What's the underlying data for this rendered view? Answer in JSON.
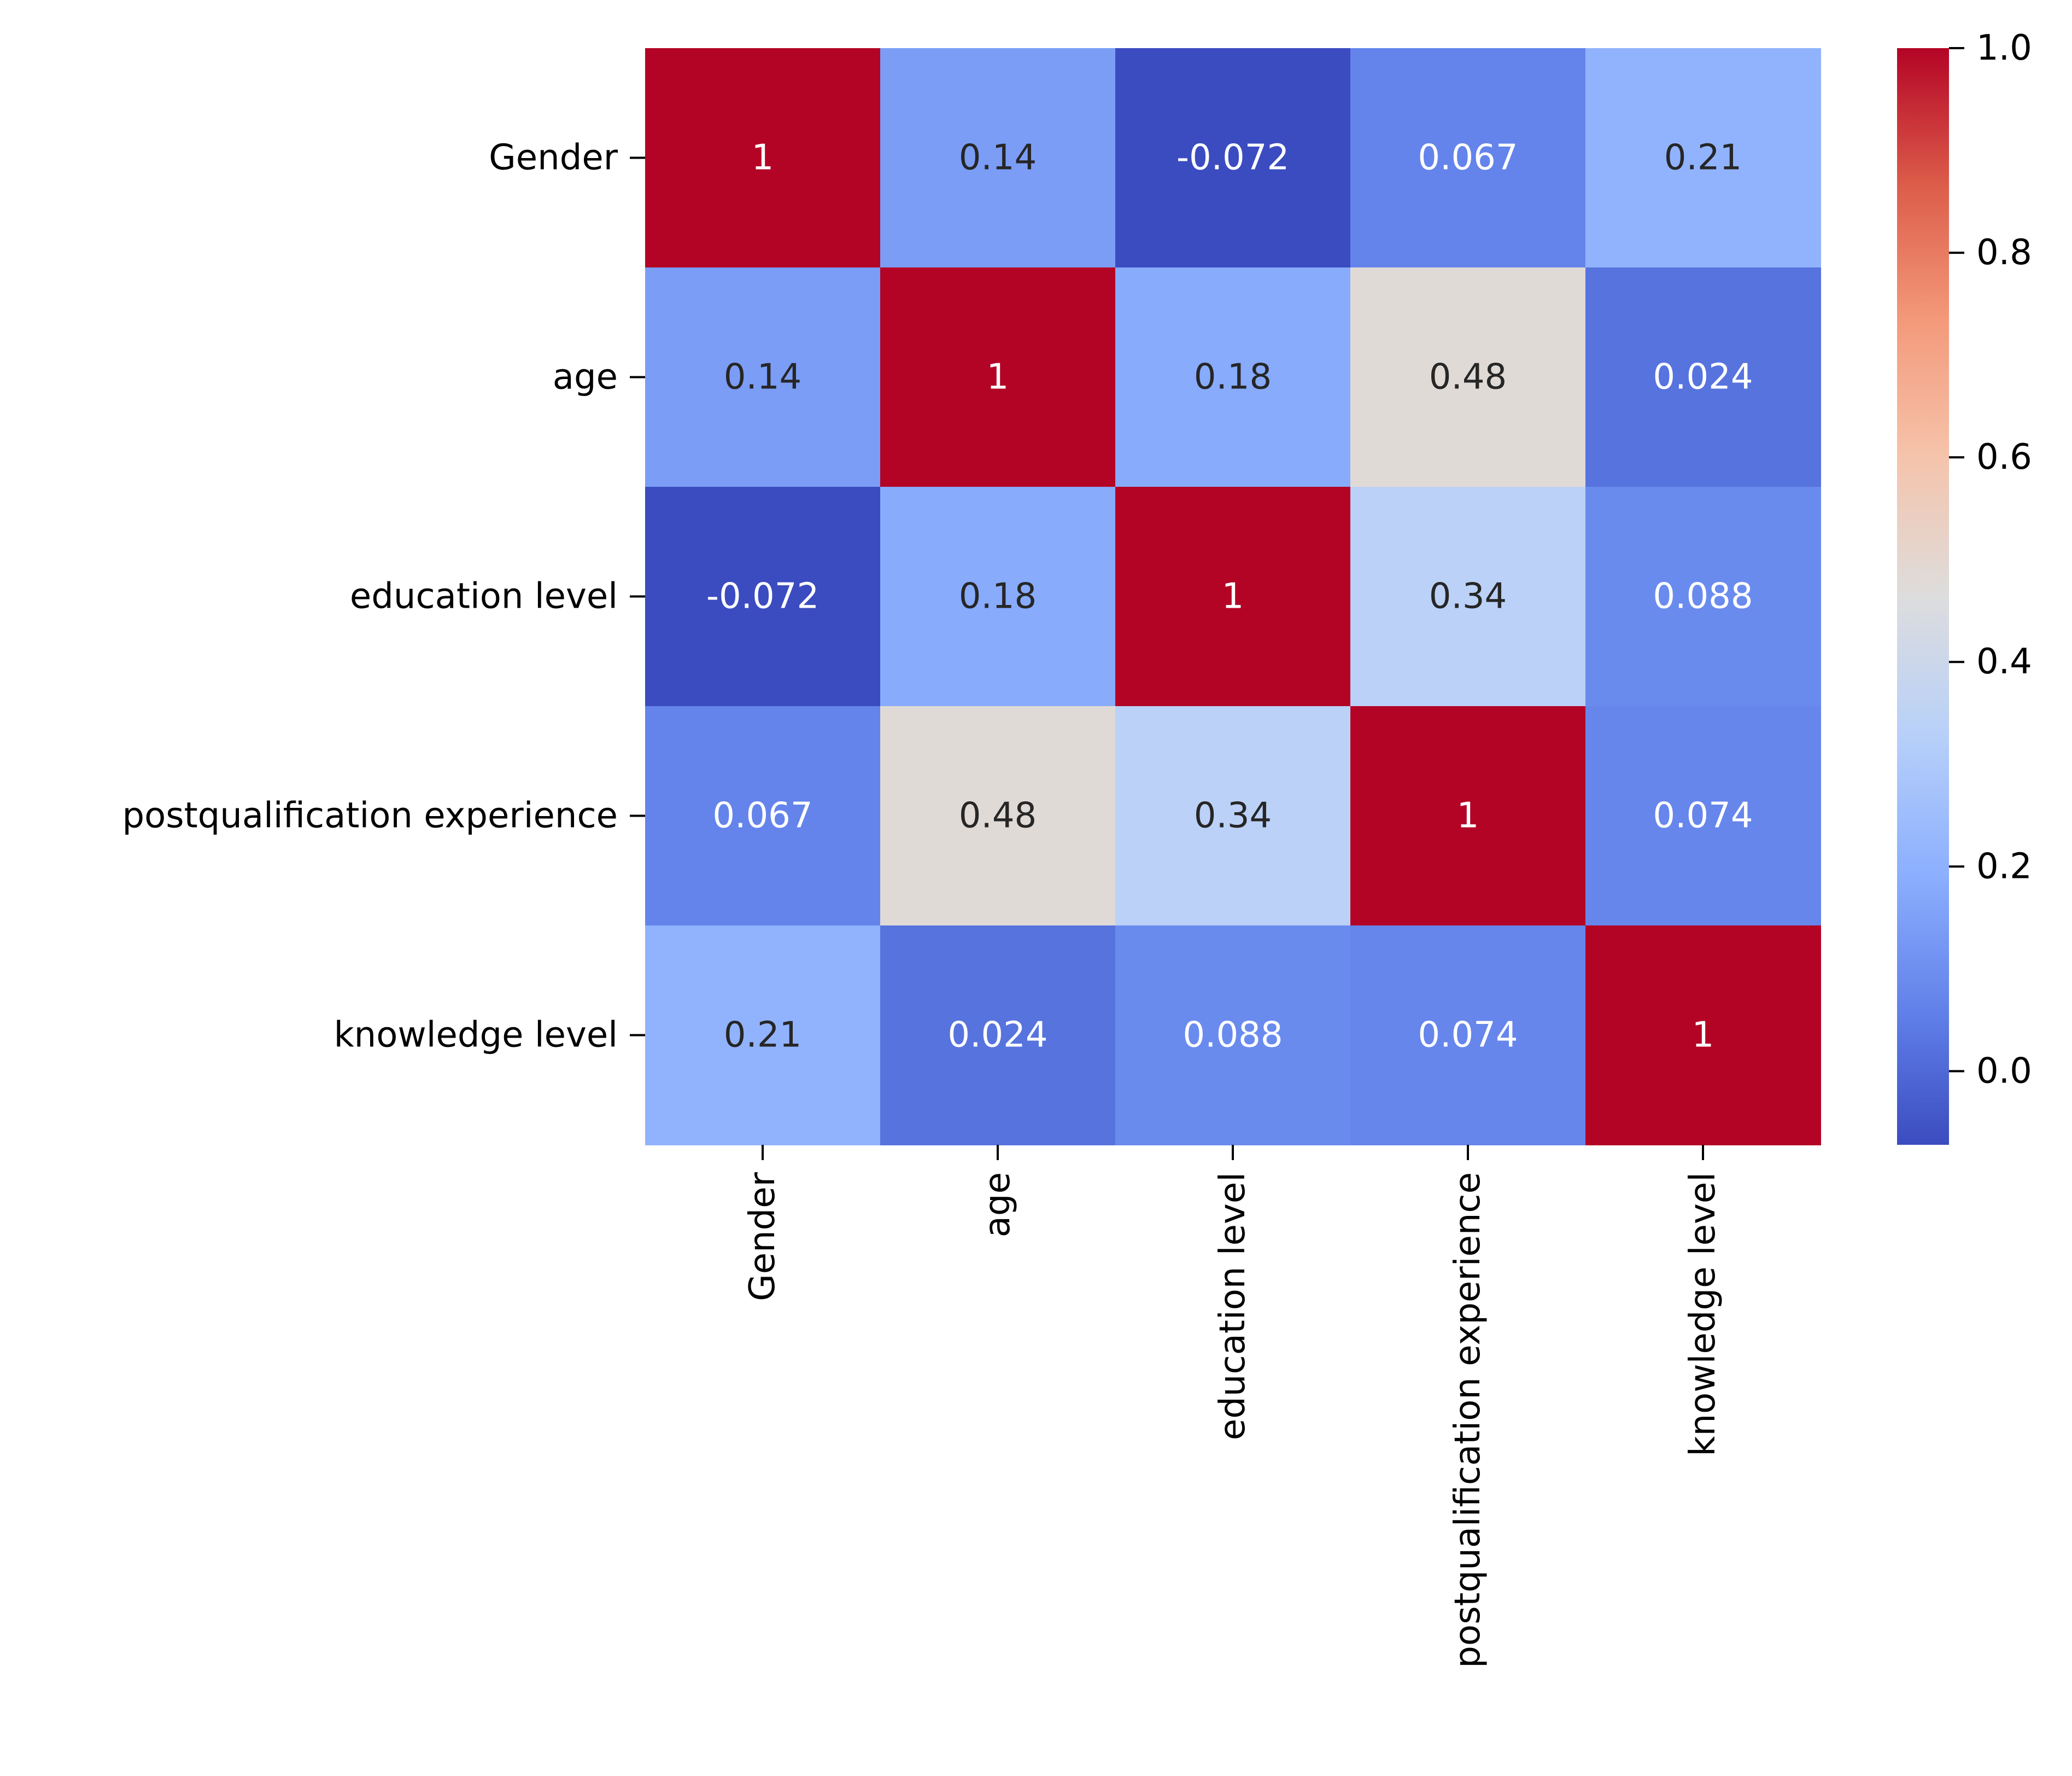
{
  "chart_data": {
    "type": "heatmap",
    "title": "",
    "xlabel": "",
    "ylabel": "",
    "row_labels": [
      "Gender",
      "age",
      "education level",
      "postqualification experience",
      "knowledge level"
    ],
    "col_labels": [
      "Gender",
      "age",
      "education level",
      "postqualification experience",
      "knowledge level"
    ],
    "values": [
      [
        1,
        0.14,
        -0.072,
        0.067,
        0.21
      ],
      [
        0.14,
        1,
        0.18,
        0.48,
        0.024
      ],
      [
        -0.072,
        0.18,
        1,
        0.34,
        0.088
      ],
      [
        0.067,
        0.48,
        0.34,
        1,
        0.074
      ],
      [
        0.21,
        0.024,
        0.088,
        0.074,
        1
      ]
    ],
    "annotations": [
      [
        "1",
        "0.14",
        "-0.072",
        "0.067",
        "0.21"
      ],
      [
        "0.14",
        "1",
        "0.18",
        "0.48",
        "0.024"
      ],
      [
        "-0.072",
        "0.18",
        "1",
        "0.34",
        "0.088"
      ],
      [
        "0.067",
        "0.48",
        "0.34",
        "1",
        "0.074"
      ],
      [
        "0.21",
        "0.024",
        "0.088",
        "0.074",
        "1"
      ]
    ],
    "colormap": "coolwarm",
    "colormap_stops": [
      "#3b4cc0",
      "#6282ea",
      "#8db0fe",
      "#b8d0f9",
      "#dddddd",
      "#f5c4ac",
      "#f49a7b",
      "#dc5d4a",
      "#b40426"
    ],
    "vmin": -0.072,
    "vmax": 1.0,
    "colorbar": {
      "ticks": [
        0.0,
        0.2,
        0.4,
        0.6,
        0.8,
        1.0
      ],
      "tick_labels": [
        "0.0",
        "0.2",
        "0.4",
        "0.6",
        "0.8",
        "1.0"
      ]
    },
    "grid": false,
    "legend": "colorbar-right"
  }
}
